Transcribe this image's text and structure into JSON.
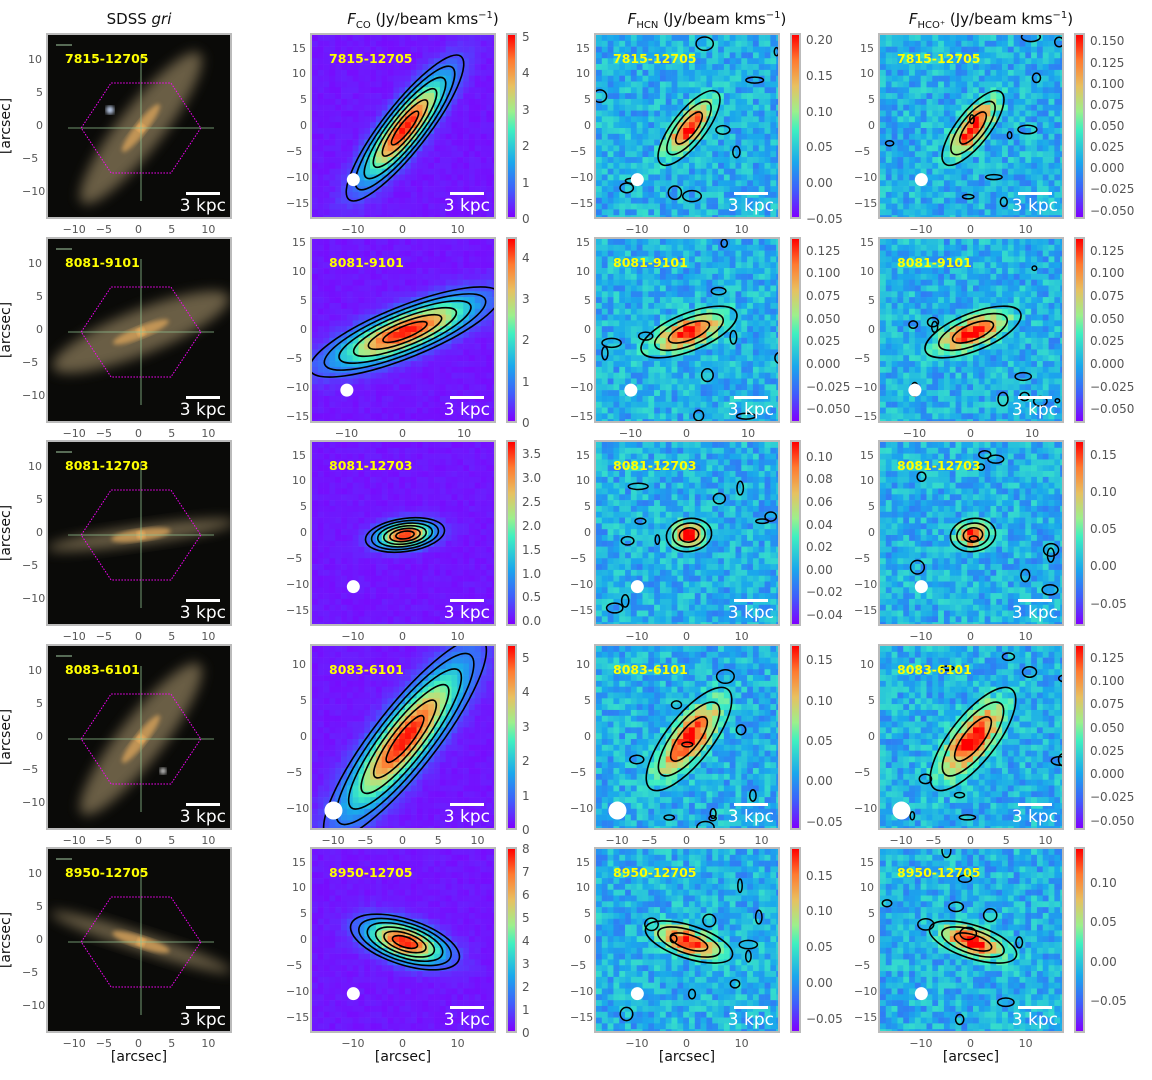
{
  "headers": [
    {
      "main": "SDSS ",
      "italic": "gri",
      "sub": "",
      "unit": ""
    },
    {
      "main": "",
      "italic": "F",
      "sub": "CO",
      "unit": " (Jy/beam kms",
      "sup": "−1",
      "close": ")"
    },
    {
      "main": "",
      "italic": "F",
      "sub": "HCN",
      "unit": " (Jy/beam kms",
      "sup": "−1",
      "close": ")"
    },
    {
      "main": "",
      "italic": "F",
      "sub": "HCO⁺",
      "unit": " (Jy/beam kms",
      "sup": "−1",
      "close": ")"
    }
  ],
  "axis_label": "[arcsec]",
  "scale_bar": "3 kpc",
  "colormap": [
    "#7f00ff",
    "#1aa7ec",
    "#3ff0c0",
    "#e8c060",
    "#ff0000"
  ],
  "rows": [
    {
      "id": "7815-12705",
      "sdss": {
        "range": [
          -14,
          14
        ],
        "ticks": [
          -10,
          -5,
          0,
          5,
          10
        ]
      },
      "maps": {
        "range": [
          -18,
          18
        ],
        "xticks": [
          -10,
          0,
          10
        ],
        "yticks": [
          -15,
          -10,
          -5,
          0,
          5,
          10,
          15
        ]
      },
      "colorbars": [
        {
          "range": [
            0,
            5.1
          ],
          "ticks": [
            "0",
            "1",
            "2",
            "3",
            "4",
            "5"
          ]
        },
        {
          "range": [
            -0.05,
            0.21
          ],
          "ticks": [
            "−0.05",
            "0.00",
            "0.05",
            "0.10",
            "0.15",
            "0.20"
          ]
        },
        {
          "range": [
            -0.06,
            0.16
          ],
          "ticks": [
            "−0.050",
            "−0.025",
            "0.000",
            "0.025",
            "0.050",
            "0.075",
            "0.100",
            "0.125",
            "0.150"
          ]
        }
      ]
    },
    {
      "id": "8081-9101",
      "sdss": {
        "range": [
          -14,
          14
        ],
        "ticks": [
          -10,
          -5,
          0,
          5,
          10
        ]
      },
      "maps": {
        "range": [
          -16,
          16
        ],
        "xticks": [
          -10,
          0,
          10
        ],
        "yticks": [
          -15,
          -10,
          -5,
          0,
          5,
          10,
          15
        ]
      },
      "colorbars": [
        {
          "range": [
            0,
            4.5
          ],
          "ticks": [
            "0",
            "1",
            "2",
            "3",
            "4"
          ]
        },
        {
          "range": [
            -0.065,
            0.14
          ],
          "ticks": [
            "−0.050",
            "−0.025",
            "0.000",
            "0.025",
            "0.050",
            "0.075",
            "0.100",
            "0.125"
          ]
        },
        {
          "range": [
            -0.065,
            0.14
          ],
          "ticks": [
            "−0.050",
            "−0.025",
            "0.000",
            "0.025",
            "0.050",
            "0.075",
            "0.100",
            "0.125"
          ]
        }
      ]
    },
    {
      "id": "8081-12703",
      "sdss": {
        "range": [
          -14,
          14
        ],
        "ticks": [
          -10,
          -5,
          0,
          5,
          10
        ]
      },
      "maps": {
        "range": [
          -18,
          18
        ],
        "xticks": [
          -10,
          0,
          10
        ],
        "yticks": [
          -15,
          -10,
          -5,
          0,
          5,
          10,
          15
        ]
      },
      "colorbars": [
        {
          "range": [
            -0.1,
            3.8
          ],
          "ticks": [
            "0.0",
            "0.5",
            "1.0",
            "1.5",
            "2.0",
            "2.5",
            "3.0",
            "3.5"
          ]
        },
        {
          "range": [
            -0.05,
            0.115
          ],
          "ticks": [
            "−0.04",
            "−0.02",
            "0.00",
            "0.02",
            "0.04",
            "0.06",
            "0.08",
            "0.10"
          ]
        },
        {
          "range": [
            -0.08,
            0.17
          ],
          "ticks": [
            "−0.05",
            "0.00",
            "0.05",
            "0.10",
            "0.15"
          ]
        }
      ]
    },
    {
      "id": "8083-6101",
      "sdss": {
        "range": [
          -14,
          14
        ],
        "ticks": [
          -10,
          -5,
          0,
          5,
          10
        ]
      },
      "maps": {
        "range": [
          -13,
          13
        ],
        "xticks": [
          -10,
          -5,
          0,
          5,
          10
        ],
        "yticks": [
          -10,
          -5,
          0,
          5,
          10
        ]
      },
      "colorbars": [
        {
          "range": [
            0,
            5.4
          ],
          "ticks": [
            "0",
            "1",
            "2",
            "3",
            "4",
            "5"
          ]
        },
        {
          "range": [
            -0.06,
            0.17
          ],
          "ticks": [
            "−0.05",
            "0.00",
            "0.05",
            "0.10",
            "0.15"
          ]
        },
        {
          "range": [
            -0.06,
            0.14
          ],
          "ticks": [
            "−0.050",
            "−0.025",
            "0.000",
            "0.025",
            "0.050",
            "0.075",
            "0.100",
            "0.125"
          ]
        }
      ]
    },
    {
      "id": "8950-12705",
      "sdss": {
        "range": [
          -14,
          14
        ],
        "ticks": [
          -10,
          -5,
          0,
          5,
          10
        ]
      },
      "maps": {
        "range": [
          -18,
          18
        ],
        "xticks": [
          -10,
          0,
          10
        ],
        "yticks": [
          -15,
          -10,
          -5,
          0,
          5,
          10,
          15
        ]
      },
      "colorbars": [
        {
          "range": [
            0,
            8.1
          ],
          "ticks": [
            "0",
            "1",
            "2",
            "3",
            "4",
            "5",
            "6",
            "7",
            "8"
          ]
        },
        {
          "range": [
            -0.07,
            0.19
          ],
          "ticks": [
            "−0.05",
            "0.00",
            "0.05",
            "0.10",
            "0.15"
          ]
        },
        {
          "range": [
            -0.09,
            0.145
          ],
          "ticks": [
            "−0.05",
            "0.00",
            "0.05",
            "0.10"
          ]
        }
      ]
    }
  ]
}
